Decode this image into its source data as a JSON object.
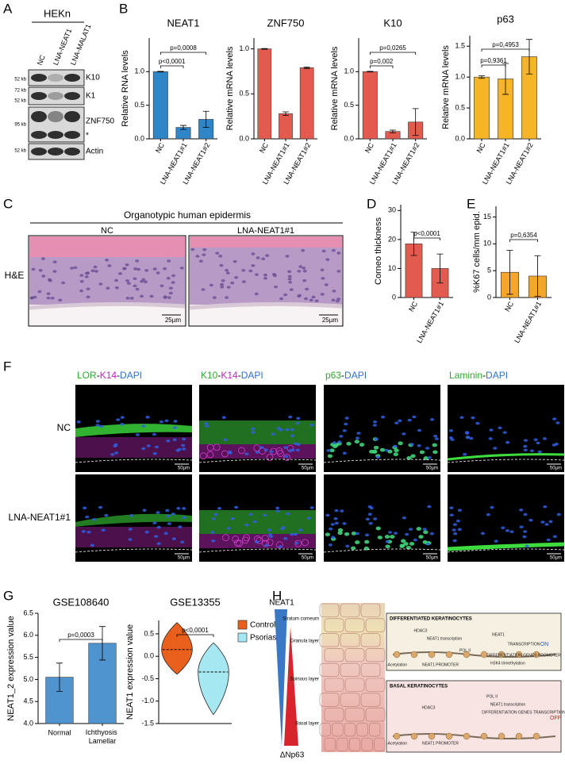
{
  "panels": [
    "A",
    "B",
    "C",
    "D",
    "E",
    "F",
    "G",
    "H"
  ],
  "blot": {
    "header": "HEKn",
    "lanes": [
      "NC",
      "LNA-NEAT1",
      "LNA-MALAT1"
    ],
    "markers": [
      "52 kb",
      "72 kb",
      "52 kb",
      "95 kb",
      "52 kb"
    ],
    "bands": [
      "K10",
      "K1",
      "ZNF750",
      "*",
      "Actin"
    ]
  },
  "histology": {
    "title": "Organotypic human epidermis",
    "columns": [
      "NC",
      "LNA-NEAT1#1"
    ],
    "row": "H&E",
    "scale_bar": "25µm"
  },
  "microscopy": {
    "columns": [
      [
        {
          "text": "LOR",
          "color": "#2fa82f"
        },
        {
          "text": "-",
          "color": "#000000"
        },
        {
          "text": "K14",
          "color": "#c51fc5"
        },
        {
          "text": "-",
          "color": "#000000"
        },
        {
          "text": "DAPI",
          "color": "#2b6fd6"
        }
      ],
      [
        {
          "text": "K10",
          "color": "#2fa82f"
        },
        {
          "text": "-",
          "color": "#000000"
        },
        {
          "text": "K14",
          "color": "#c51fc5"
        },
        {
          "text": "-",
          "color": "#000000"
        },
        {
          "text": "DAPI",
          "color": "#2b6fd6"
        }
      ],
      [
        {
          "text": "p63",
          "color": "#2fa82f"
        },
        {
          "text": "-",
          "color": "#000000"
        },
        {
          "text": "DAPI",
          "color": "#2b6fd6"
        }
      ],
      [
        {
          "text": "Laminin",
          "color": "#2fa82f"
        },
        {
          "text": "-",
          "color": "#000000"
        },
        {
          "text": "DAPI",
          "color": "#2b6fd6"
        }
      ]
    ],
    "rows": [
      "NC",
      "LNA-NEAT1#1"
    ],
    "scale_bar": "50µm"
  },
  "chart_data": [
    {
      "type": "bar",
      "title": "NEAT1",
      "ylabel": "Relative RNA levels",
      "categories": [
        "NC",
        "LNA-NEAT1#1",
        "LNA-NEAT1#2"
      ],
      "values": [
        1.0,
        0.17,
        0.29
      ],
      "errors": [
        0.005,
        0.03,
        0.12
      ],
      "color": "#2e86c8",
      "ylim": [
        0,
        1.5
      ],
      "yticks": [
        {
          "value": 0,
          "label": "0.0"
        },
        0.5,
        {
          "value": 1,
          "label": "1.0"
        }
      ],
      "annotations": [
        "p<0,0001",
        "p=0,0008"
      ]
    },
    {
      "type": "bar",
      "title": "ZNF750",
      "ylabel": "Relative mRNA levels",
      "categories": [
        "NC",
        "LNA-NEAT1#1",
        "LNA-NEAT1#2"
      ],
      "values": [
        1.0,
        0.28,
        0.79
      ],
      "errors": [
        0.004,
        0.02,
        0.008
      ],
      "color": "#e35b4f",
      "ylim": [
        0,
        1.12
      ],
      "yticks": [
        {
          "value": 0,
          "label": "0.0"
        },
        0.5,
        {
          "value": 1,
          "label": "1.0"
        }
      ],
      "annotations": []
    },
    {
      "type": "bar",
      "title": "K10",
      "ylabel": "Relative mRNA levels",
      "categories": [
        "NC",
        "LNA-NEAT1#1",
        "LNA-NEAT1#2"
      ],
      "values": [
        1.0,
        0.11,
        0.25
      ],
      "errors": [
        0.005,
        0.02,
        0.2
      ],
      "color": "#e35b4f",
      "ylim": [
        0,
        1.5
      ],
      "yticks": [
        {
          "value": 0,
          "label": "0.0"
        },
        0.5,
        {
          "value": 1,
          "label": "1.0"
        }
      ],
      "annotations": [
        "p=0,002",
        "p=0,0265"
      ]
    },
    {
      "type": "bar",
      "title": "p63",
      "ylabel": "Relative mRNA levels",
      "categories": [
        "NC",
        "LNA-NEAT1#1",
        "LNA-NEAT1#2"
      ],
      "values": [
        1.0,
        0.97,
        1.33
      ],
      "errors": [
        0.02,
        0.25,
        0.28
      ],
      "color": "#f6b526",
      "ylim": [
        0,
        1.67
      ],
      "yticks": [
        {
          "value": 0,
          "label": "0.0"
        },
        0.5,
        {
          "value": 1,
          "label": "1.0"
        },
        1.5
      ],
      "annotations": [
        "p=0,9361",
        "p=0,4953"
      ]
    },
    {
      "type": "bar",
      "ylabel": "Corneo  thickness",
      "categories": [
        "NC",
        "LNA-NEAT1#1"
      ],
      "values": [
        18.5,
        10.0
      ],
      "errors": [
        4.0,
        5.0
      ],
      "color": "#e35b4f",
      "ylim": [
        0,
        32
      ],
      "yticks": [
        0,
        10,
        20,
        30
      ],
      "annotations": [
        "p<0,0001"
      ]
    },
    {
      "type": "bar",
      "ylabel": "%K67  cells/mm epid.",
      "categories": [
        "NC",
        "LNA-NEAT1#1"
      ],
      "values": [
        4.7,
        4.0
      ],
      "errors": [
        4.1,
        3.8
      ],
      "color": "#f4a62a",
      "ylim": [
        0,
        17
      ],
      "yticks": [
        0,
        5,
        10,
        15
      ],
      "annotations": [
        "p=0,6354"
      ]
    },
    {
      "type": "bar",
      "title": "GSE108640",
      "ylabel": "NEAT1_2 expression value",
      "categories": [
        "Normal",
        "Ichthyosis Lamellar"
      ],
      "values": [
        5.05,
        5.82
      ],
      "errors": [
        0.32,
        0.38
      ],
      "color": "#4f93cf",
      "ylim": [
        4.0,
        6.5
      ],
      "yticks": [
        {
          "value": 4,
          "label": "4.0"
        },
        4.5,
        {
          "value": 5,
          "label": "5.0"
        },
        5.5,
        {
          "value": 6,
          "label": "6.0"
        },
        6.5
      ],
      "annotations": [
        "p=0,0003"
      ]
    },
    {
      "type": "violin",
      "title": "GSE13355",
      "ylabel": "NEAT1 expression value",
      "series": [
        {
          "name": "Control",
          "color": "#e8601c",
          "values": [
            0.15
          ],
          "min": -0.4,
          "max": 0.75
        },
        {
          "name": "Psoriasis",
          "color": "#a6e8f2",
          "values": [
            -0.35
          ],
          "min": -1.3,
          "max": 0.3
        }
      ],
      "ylim": [
        -1.5,
        0.8
      ],
      "yticks": [
        -1.5,
        {
          "value": -1,
          "label": "-1.0"
        },
        -0.5,
        {
          "value": 0,
          "label": "0.0"
        },
        0.5
      ],
      "annotations": [
        "p<0,0001"
      ]
    }
  ],
  "schematic": {
    "gradients": [
      "NEAT1",
      "ΔNp63"
    ],
    "layers": [
      "Stratum corneum",
      "Granula layer",
      "Spinous layer",
      "Basal layer"
    ],
    "boxes": [
      {
        "title": "DIFFERENTIATED KERATINOCYTES",
        "labels": [
          "HDAC3",
          "NEAT1 transcription",
          "POL II",
          "NEAT1",
          "TRANSCRIPTION",
          "ON",
          "-Acetylation",
          "NEAT1 PROMOTER",
          "H3K4 trimethylation",
          "DIFFERENTIATION GENES PROMOTER"
        ]
      },
      {
        "title": "BASAL KERATINOCYTES",
        "labels": [
          "HDAC3",
          "POL II",
          "NEAT1 transcription",
          "DIFFERENTIATION GENES TRANSCRIPTION",
          "OFF",
          "-Acetylation",
          "NEAT1 PROMOTER"
        ]
      }
    ]
  }
}
